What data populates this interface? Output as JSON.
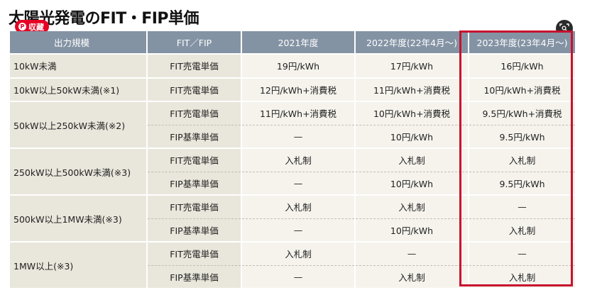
{
  "page": {
    "title": "太陽光発電のFIT・FIP単価",
    "save_label": "収藏",
    "pin_glyph": "P"
  },
  "table": {
    "headers": [
      "出力規模",
      "FIT／FIP",
      "2021年度",
      "2022年度(22年4月〜)",
      "2023年度(23年4月〜)"
    ],
    "scales": [
      "10kW未満",
      "10kW以上50kW未満(※1)",
      "50kW以上250kW未満(※2)",
      "250kW以上500kW未満(※3)",
      "500kW以上1MW未満(※3)",
      "1MW以上(※3)"
    ],
    "rows": [
      {
        "kind": "FIT売電単価",
        "y2021": "19円/kWh",
        "y2022": "17円/kWh",
        "y2023": "16円/kWh"
      },
      {
        "kind": "FIT売電単価",
        "y2021": "12円/kWh+消費税",
        "y2022": "11円/kWh+消費税",
        "y2023": "10円/kWh+消費税"
      },
      {
        "kind": "FIT売電単価",
        "y2021": "11円/kWh+消費税",
        "y2022": "10円/kWh+消費税",
        "y2023": "9.5円/kWh+消費税"
      },
      {
        "kind": "FIP基準単価",
        "y2021": "—",
        "y2022": "10円/kWh",
        "y2023": "9.5円/kWh"
      },
      {
        "kind": "FIT売電単価",
        "y2021": "入札制",
        "y2022": "入札制",
        "y2023": "入札制"
      },
      {
        "kind": "FIP基準単価",
        "y2021": "—",
        "y2022": "10円/kWh",
        "y2023": "9.5円/kWh"
      },
      {
        "kind": "FIT売電単価",
        "y2021": "入札制",
        "y2022": "入札制",
        "y2023": "—"
      },
      {
        "kind": "FIP基準単価",
        "y2021": "—",
        "y2022": "10円/kWh",
        "y2023": "入札制"
      },
      {
        "kind": "FIT売電単価",
        "y2021": "入札制",
        "y2022": "—",
        "y2023": "—"
      },
      {
        "kind": "FIP基準単価",
        "y2021": "—",
        "y2022": "入札制",
        "y2023": "入札制"
      }
    ]
  },
  "colors": {
    "header_bg": "#8493a4",
    "cell_bg": "#e9e6db",
    "value_bg": "#f5f3ec",
    "highlight_border": "#c8102e",
    "save_button": "#e60023"
  },
  "icons": {
    "pin": "pinterest-icon",
    "lens": "visual-search-icon"
  }
}
